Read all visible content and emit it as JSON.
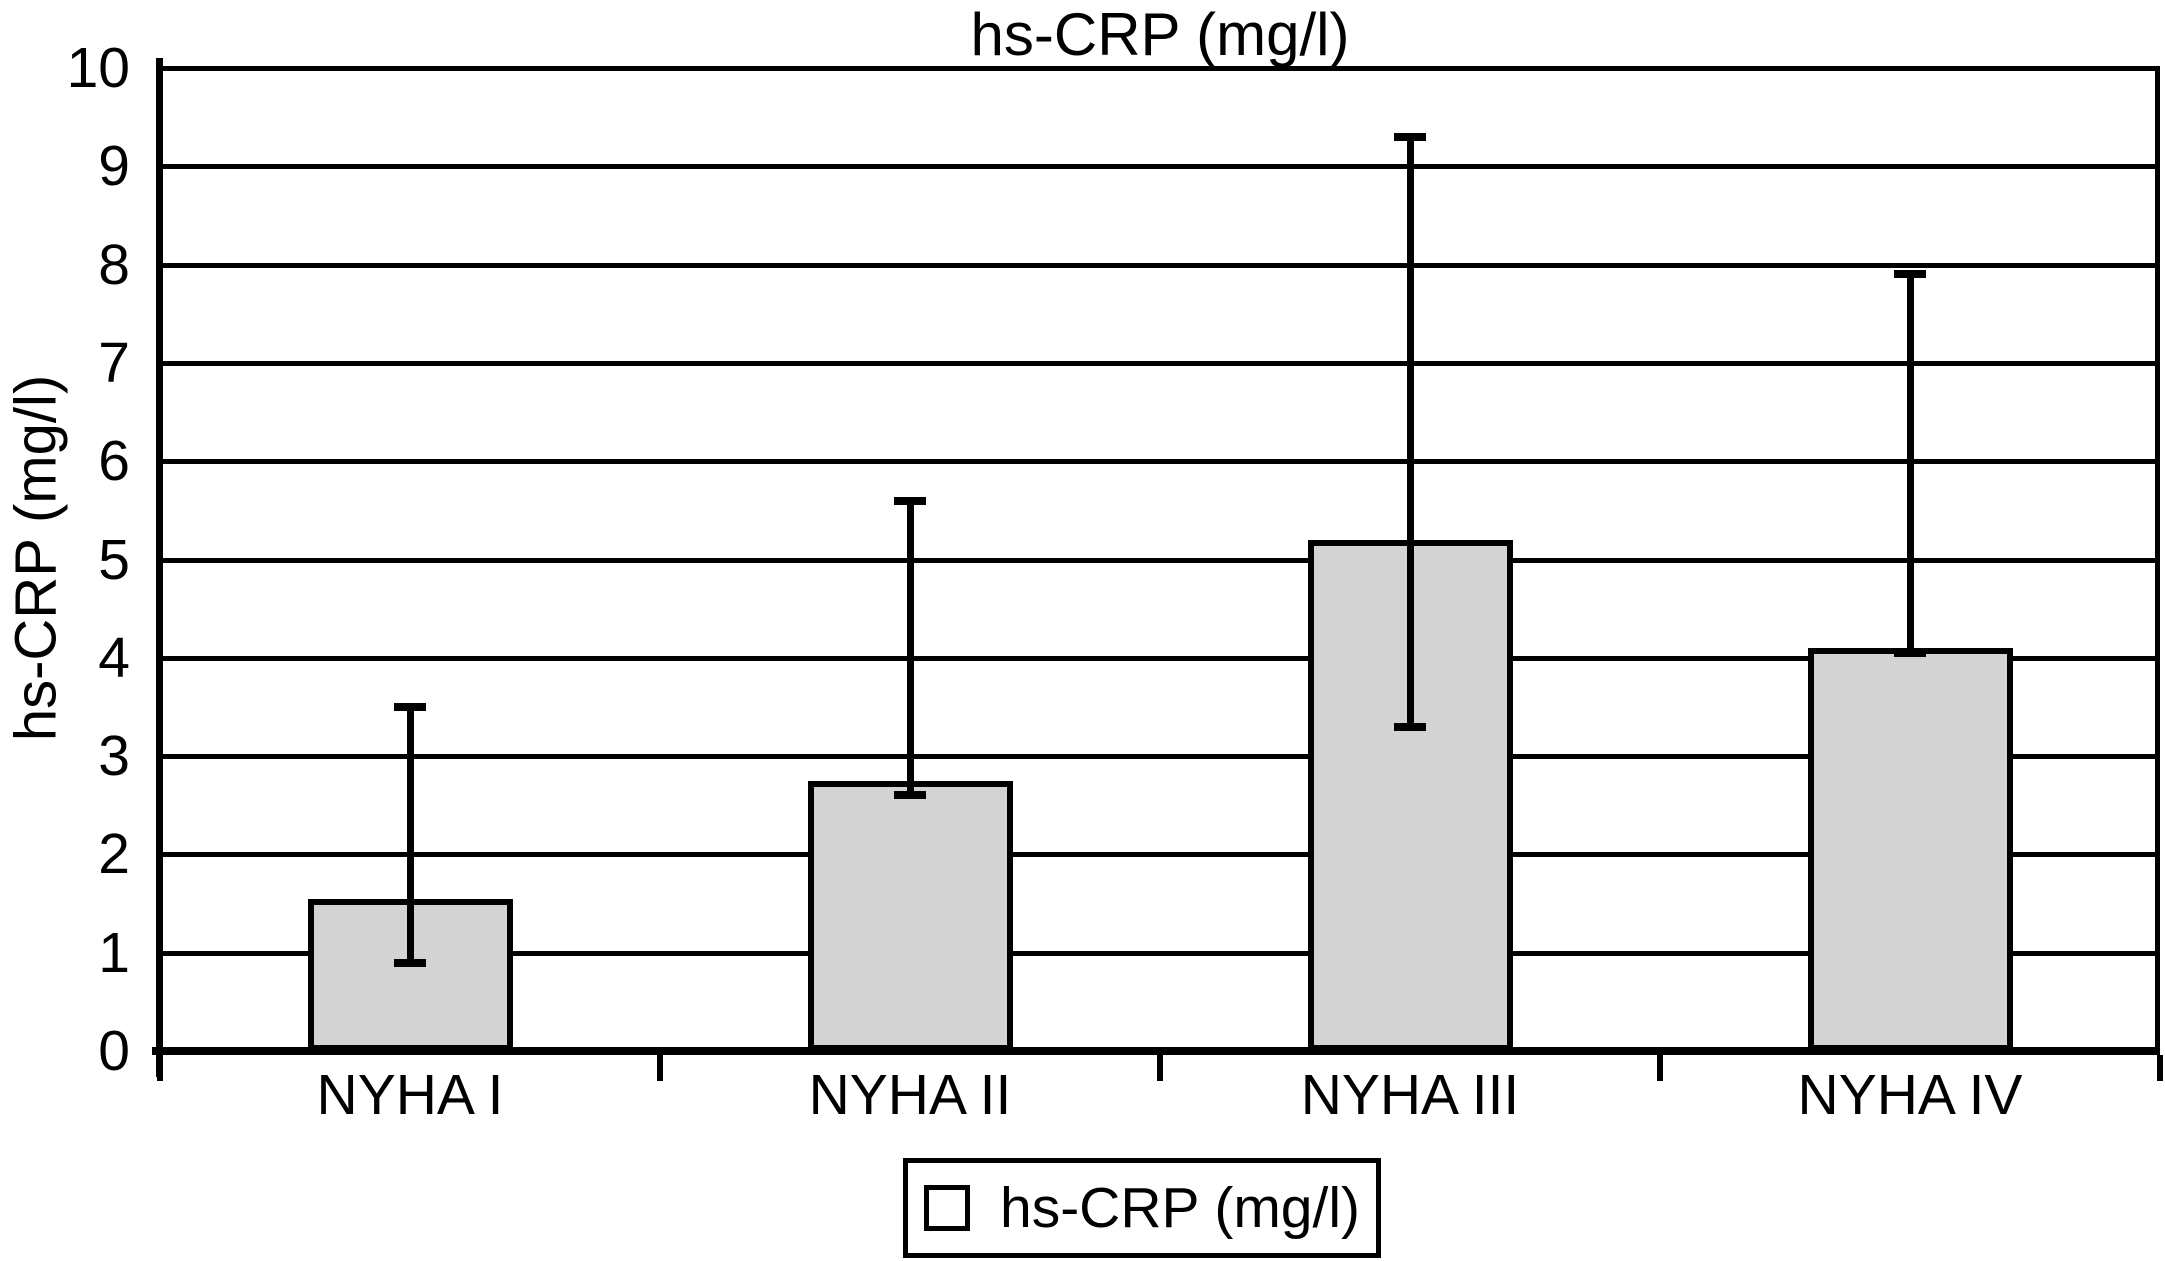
{
  "chart_data": {
    "type": "bar",
    "title": "hs-CRP (mg/l)",
    "xlabel": "",
    "ylabel": "hs-CRP (mg/l)",
    "categories": [
      "NYHA I",
      "NYHA II",
      "NYHA III",
      "NYHA IV"
    ],
    "values": [
      1.55,
      2.75,
      5.2,
      4.1
    ],
    "error_low": [
      0.9,
      2.6,
      3.3,
      4.05
    ],
    "error_high": [
      3.5,
      5.6,
      9.3,
      7.9
    ],
    "ylim": [
      0,
      10
    ],
    "yticks": [
      0,
      1,
      2,
      3,
      4,
      5,
      6,
      7,
      8,
      9,
      10
    ],
    "grid": true,
    "legend": {
      "labels": [
        "hs-CRP (mg/l)"
      ],
      "position": "bottom"
    },
    "colors": {
      "bar_fill": "#d3d3d3",
      "line": "#000000",
      "background": "#ffffff",
      "text": "#000000"
    }
  }
}
